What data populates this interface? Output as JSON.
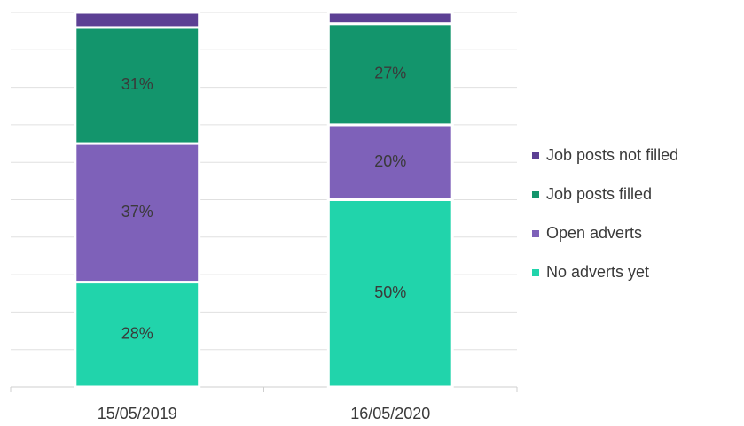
{
  "chart_data": {
    "type": "stacked_bar",
    "categories": [
      "15/05/2019",
      "16/05/2020"
    ],
    "series": [
      {
        "name": "No adverts yet",
        "color": "#21d4ab",
        "values": [
          28,
          50
        ],
        "value_labels": [
          "28%",
          "50%"
        ]
      },
      {
        "name": "Open adverts",
        "color": "#7e61b9",
        "values": [
          37,
          20
        ],
        "value_labels": [
          "37%",
          "20%"
        ]
      },
      {
        "name": "Job posts filled",
        "color": "#13956c",
        "values": [
          31,
          27
        ],
        "value_labels": [
          "31%",
          "27%"
        ]
      },
      {
        "name": "Job posts not filled",
        "color": "#5c4094",
        "values": [
          4,
          3
        ]
      }
    ],
    "ylim": [
      0,
      100
    ],
    "yticks": [
      0,
      10,
      20,
      30,
      40,
      50,
      60,
      70,
      80,
      90,
      100
    ],
    "grid": true,
    "legend": "right"
  }
}
